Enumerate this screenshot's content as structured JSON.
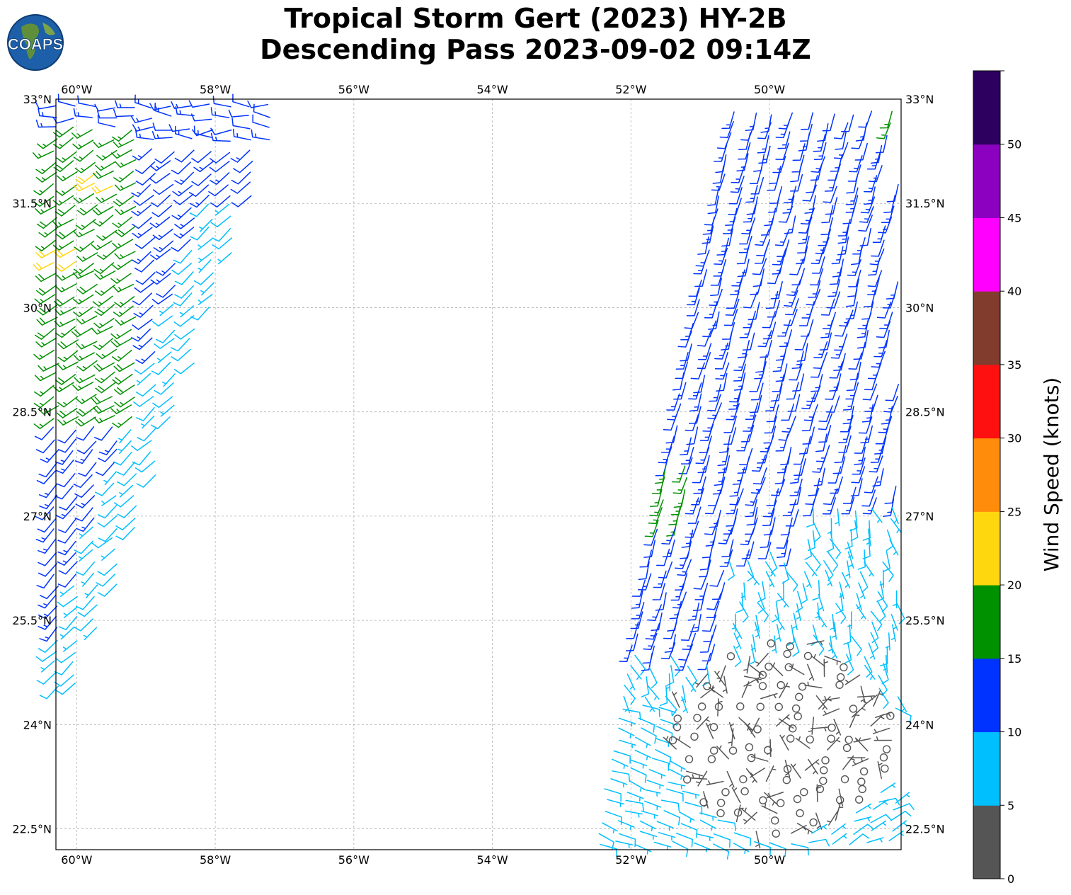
{
  "title": {
    "line1": "Tropical Storm Gert (2023) HY-2B",
    "line2": "Descending Pass 2023-09-02 09:14Z"
  },
  "logo": {
    "text": "COAPS"
  },
  "map": {
    "lon_range": [
      -60.3,
      -48.1
    ],
    "lat_range": [
      22.2,
      33.0
    ],
    "lon_ticks": [
      -60,
      -58,
      -56,
      -54,
      -52,
      -50
    ],
    "lon_tick_labels": [
      "60°W",
      "58°W",
      "56°W",
      "54°W",
      "52°W",
      "50°W"
    ],
    "lat_ticks": [
      33,
      31.5,
      30,
      28.5,
      27,
      25.5,
      24,
      22.5
    ],
    "lat_tick_labels": [
      "33°N",
      "31.5°N",
      "30°N",
      "28.5°N",
      "27°N",
      "25.5°N",
      "24°N",
      "22.5°N"
    ],
    "gridlines": true
  },
  "colorbar": {
    "label": "Wind Speed (knots)",
    "ticks": [
      "0",
      "5",
      "10",
      "15",
      "20",
      "25",
      "30",
      "35",
      "40",
      "45",
      "50"
    ],
    "bins": [
      {
        "min": 0,
        "max": 5,
        "color": "#555555"
      },
      {
        "min": 5,
        "max": 10,
        "color": "#00bfff"
      },
      {
        "min": 10,
        "max": 15,
        "color": "#0033ff"
      },
      {
        "min": 15,
        "max": 20,
        "color": "#009100"
      },
      {
        "min": 20,
        "max": 25,
        "color": "#ffd70f"
      },
      {
        "min": 25,
        "max": 30,
        "color": "#ff8c0a"
      },
      {
        "min": 30,
        "max": 35,
        "color": "#ff1010"
      },
      {
        "min": 35,
        "max": 40,
        "color": "#823c2d"
      },
      {
        "min": 40,
        "max": 45,
        "color": "#ff00ff"
      },
      {
        "min": 45,
        "max": 50,
        "color": "#8c00c0"
      },
      {
        "min": 50,
        "max": 55,
        "color": "#2d005f"
      }
    ]
  },
  "chart_data": {
    "type": "scatter",
    "description_units": "wind barbs, speed in knots, direction in degrees (from)",
    "swaths": [
      {
        "name": "west swath",
        "lat_range": [
          24.5,
          33.0
        ],
        "regions": [
          {
            "lon_range": [
              -60.3,
              -59.0
            ],
            "lat_range": [
              28.3,
              33.0
            ],
            "speed_kt": 17,
            "dir_deg": 235
          },
          {
            "lon_range": [
              -59.2,
              -57.0
            ],
            "lat_range": [
              28.0,
              33.0
            ],
            "speed_kt": 12,
            "dir_deg": 230
          },
          {
            "lon_range": [
              -60.3,
              -59.0
            ],
            "lat_range": [
              24.6,
              28.5
            ],
            "speed_kt": 12,
            "dir_deg": 215
          },
          {
            "lon_range": [
              -59.0,
              -57.0
            ],
            "lat_range": [
              28.0,
              33.0
            ],
            "speed_kt": 8,
            "dir_deg": 220
          }
        ]
      },
      {
        "name": "east swath",
        "lat_range": [
          22.2,
          33.0
        ],
        "regions": [
          {
            "lon_range": [
              -52.0,
              -48.1
            ],
            "lat_range": [
              25.0,
              33.0
            ],
            "speed_kt": 13,
            "dir_deg": 195
          },
          {
            "lon_range": [
              -51.5,
              -51.0
            ],
            "lat_range": [
              26.9,
              27.7
            ],
            "speed_kt": 16,
            "dir_deg": 195
          },
          {
            "lon_range": [
              -52.3,
              -49.2
            ],
            "lat_range": [
              22.8,
              25.5
            ],
            "speed_kt": 7,
            "dir_deg": 110
          },
          {
            "lon_range": [
              -51.8,
              -48.1
            ],
            "lat_range": [
              22.2,
              25.8
            ],
            "speed_kt": 2,
            "dir_deg": 90
          },
          {
            "lon_range": [
              -49.5,
              -48.1
            ],
            "lat_range": [
              22.2,
              24.2
            ],
            "speed_kt": 7,
            "dir_deg": 60
          }
        ]
      }
    ]
  }
}
